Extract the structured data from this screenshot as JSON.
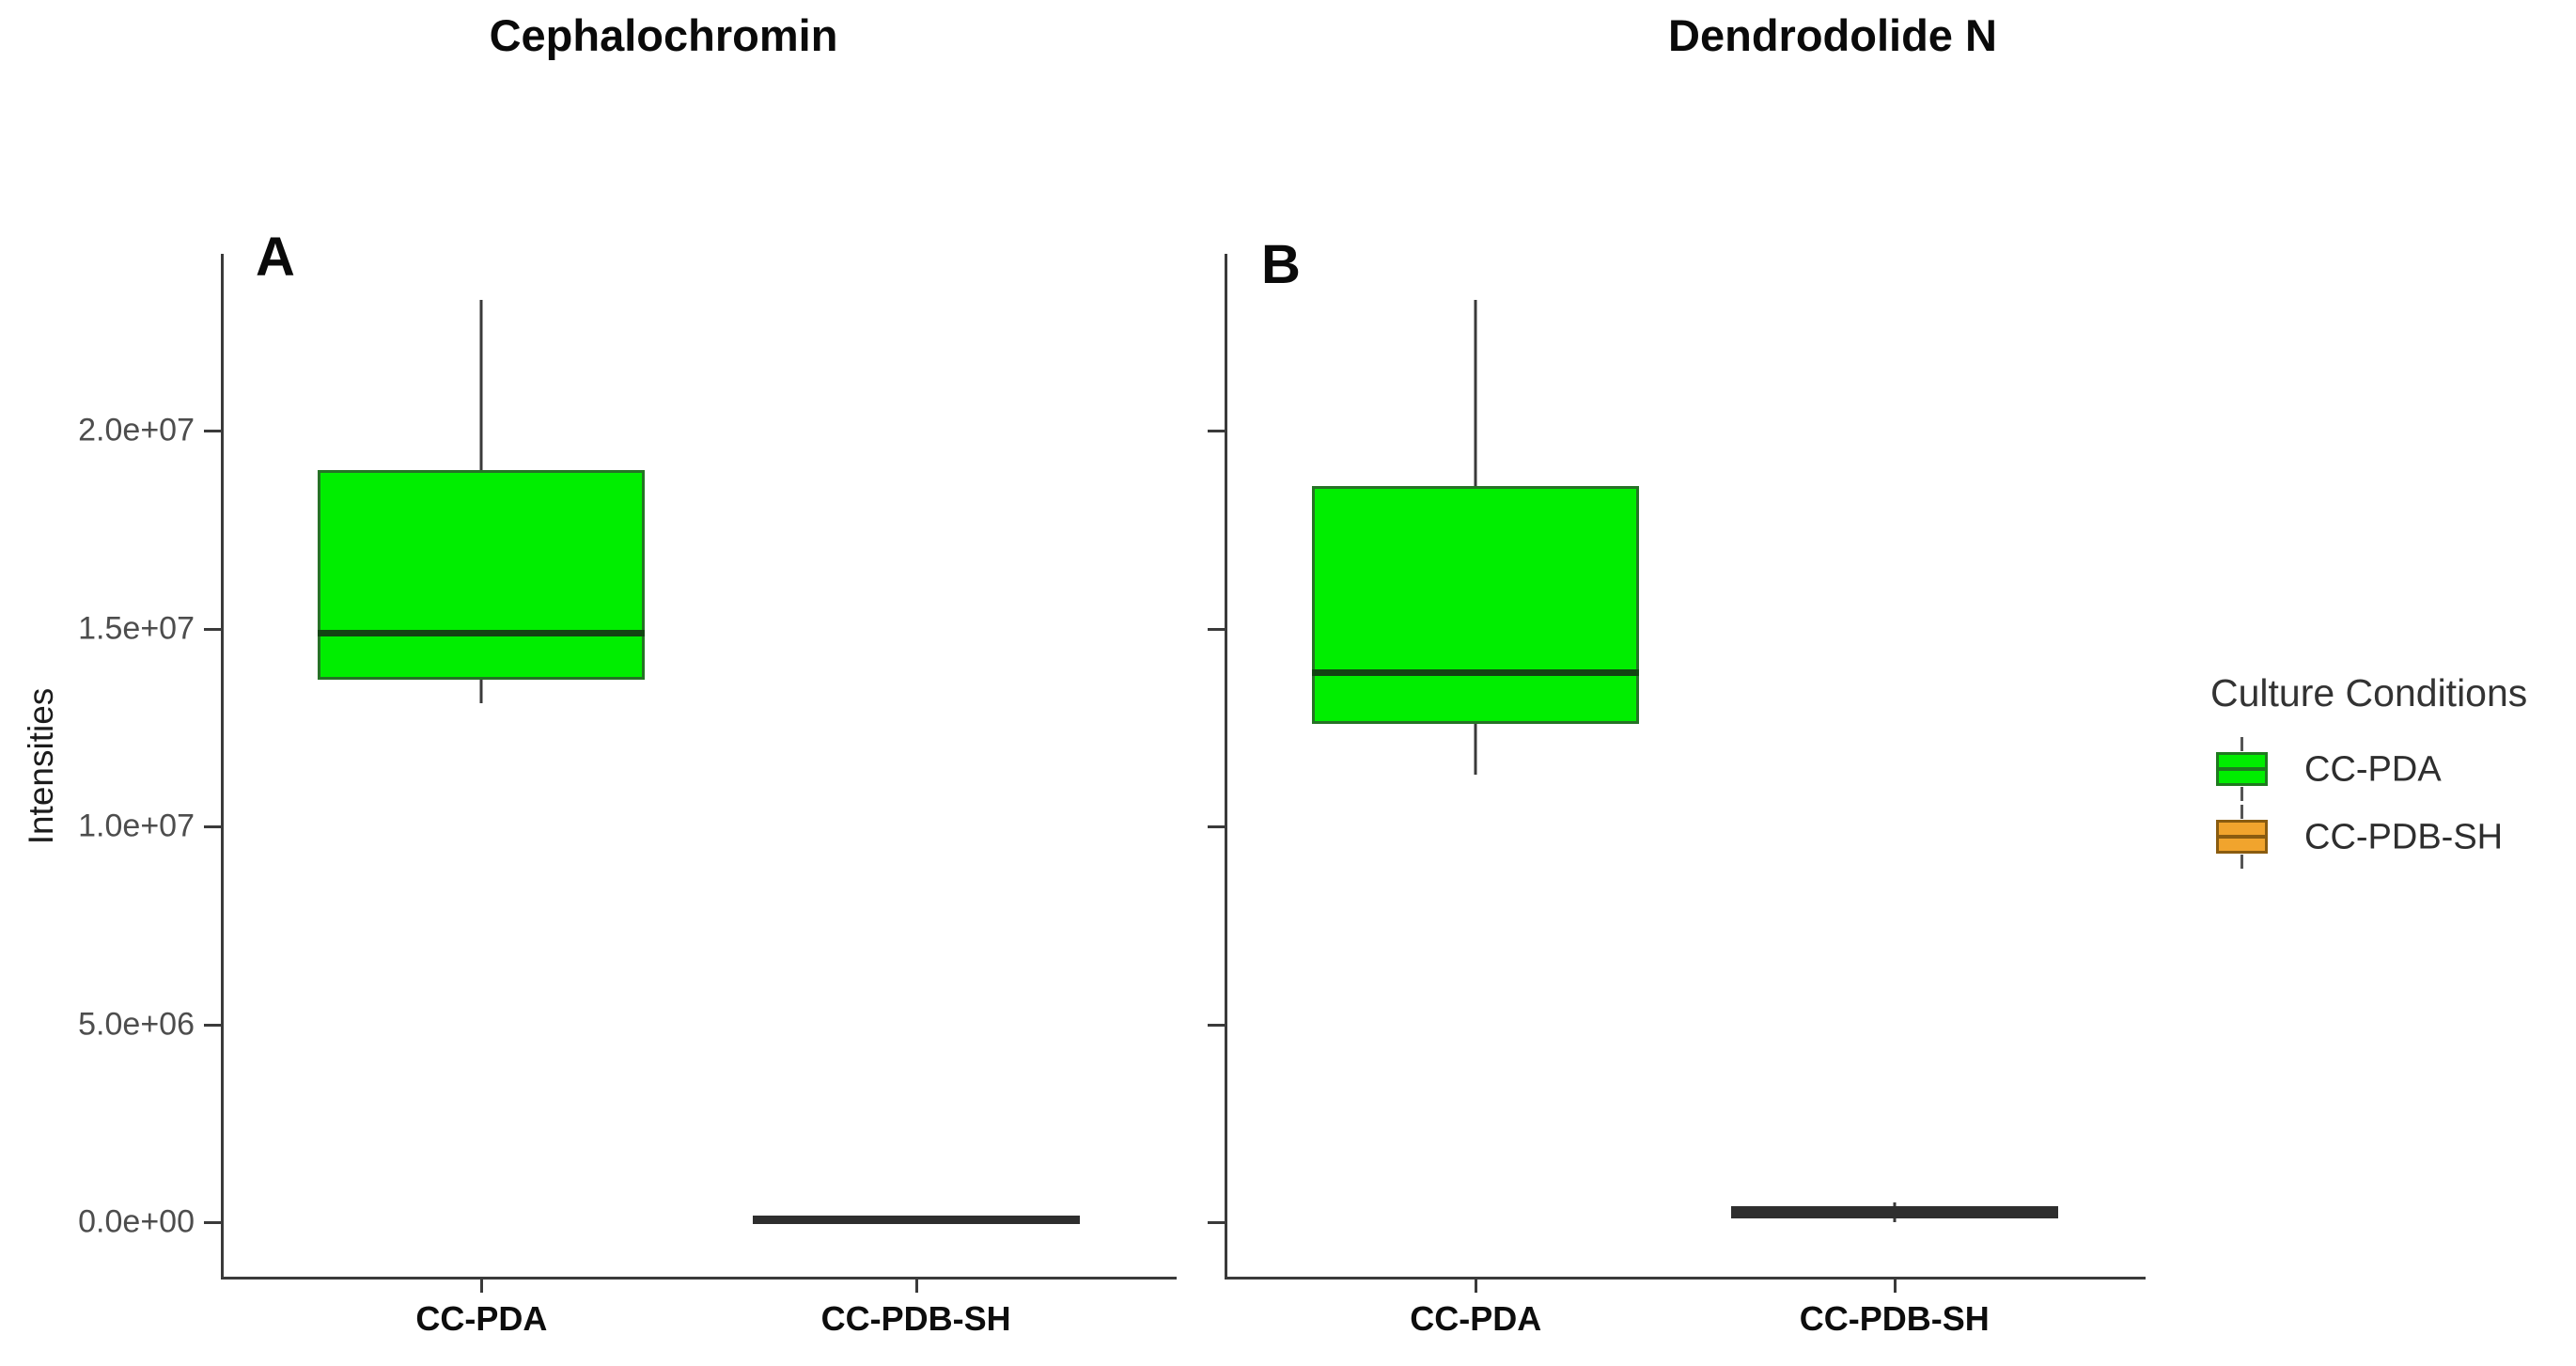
{
  "chart_data": {
    "type": "boxplot",
    "layout_hint": "two side-by-side panels sharing one labeled y axis; legend on right",
    "y_axis": {
      "label": "Intensities",
      "tick_values": [
        0,
        5000000,
        10000000,
        15000000,
        20000000
      ],
      "tick_labels": [
        "0.0e+00",
        "5.0e+06",
        "1.0e+07",
        "1.5e+07",
        "2.0e+07"
      ],
      "range": [
        -1380000,
        24500000
      ],
      "grid": "off"
    },
    "categories": [
      "CC-PDA",
      "CC-PDB-SH"
    ],
    "panels": [
      {
        "letter": "A",
        "title": "Cephalochromin",
        "boxes": [
          {
            "category": "CC-PDA",
            "group": "CC-PDA",
            "min": 13100000,
            "q1": 13700000,
            "median": 14900000,
            "q3": 19000000,
            "max": 23300000
          },
          {
            "category": "CC-PDB-SH",
            "group": "CC-PDB-SH",
            "min": 100000,
            "q1": 100000,
            "median": 100000,
            "q3": 100000,
            "max": 100000
          }
        ]
      },
      {
        "letter": "B",
        "title": "Dendrodolide N",
        "boxes": [
          {
            "category": "CC-PDA",
            "group": "CC-PDA",
            "min": 11300000,
            "q1": 12600000,
            "median": 13900000,
            "q3": 18600000,
            "max": 23300000
          },
          {
            "category": "CC-PDB-SH",
            "group": "CC-PDB-SH",
            "min": 0,
            "q1": 100000,
            "median": 250000,
            "q3": 400000,
            "max": 500000
          }
        ]
      }
    ],
    "legend": {
      "title": "Culture Conditions",
      "items": [
        {
          "label": "CC-PDA",
          "fill": "#00EE00",
          "border": "#1F7A1F",
          "median": "#1F7A1F"
        },
        {
          "label": "CC-PDB-SH",
          "fill": "#F1A42D",
          "border": "#8A5C10",
          "median": "#8A5C10"
        }
      ]
    },
    "colors": {
      "green_fill": "#00EE00",
      "green_border": "#267326",
      "green_median": "#134413",
      "orange_fill": "#F1A42D",
      "orange_border": "#8A5C10",
      "collapsed_box": "#2e2e2e",
      "axis": "#3a3a3a",
      "tick_label": "#4d4d4d"
    }
  }
}
